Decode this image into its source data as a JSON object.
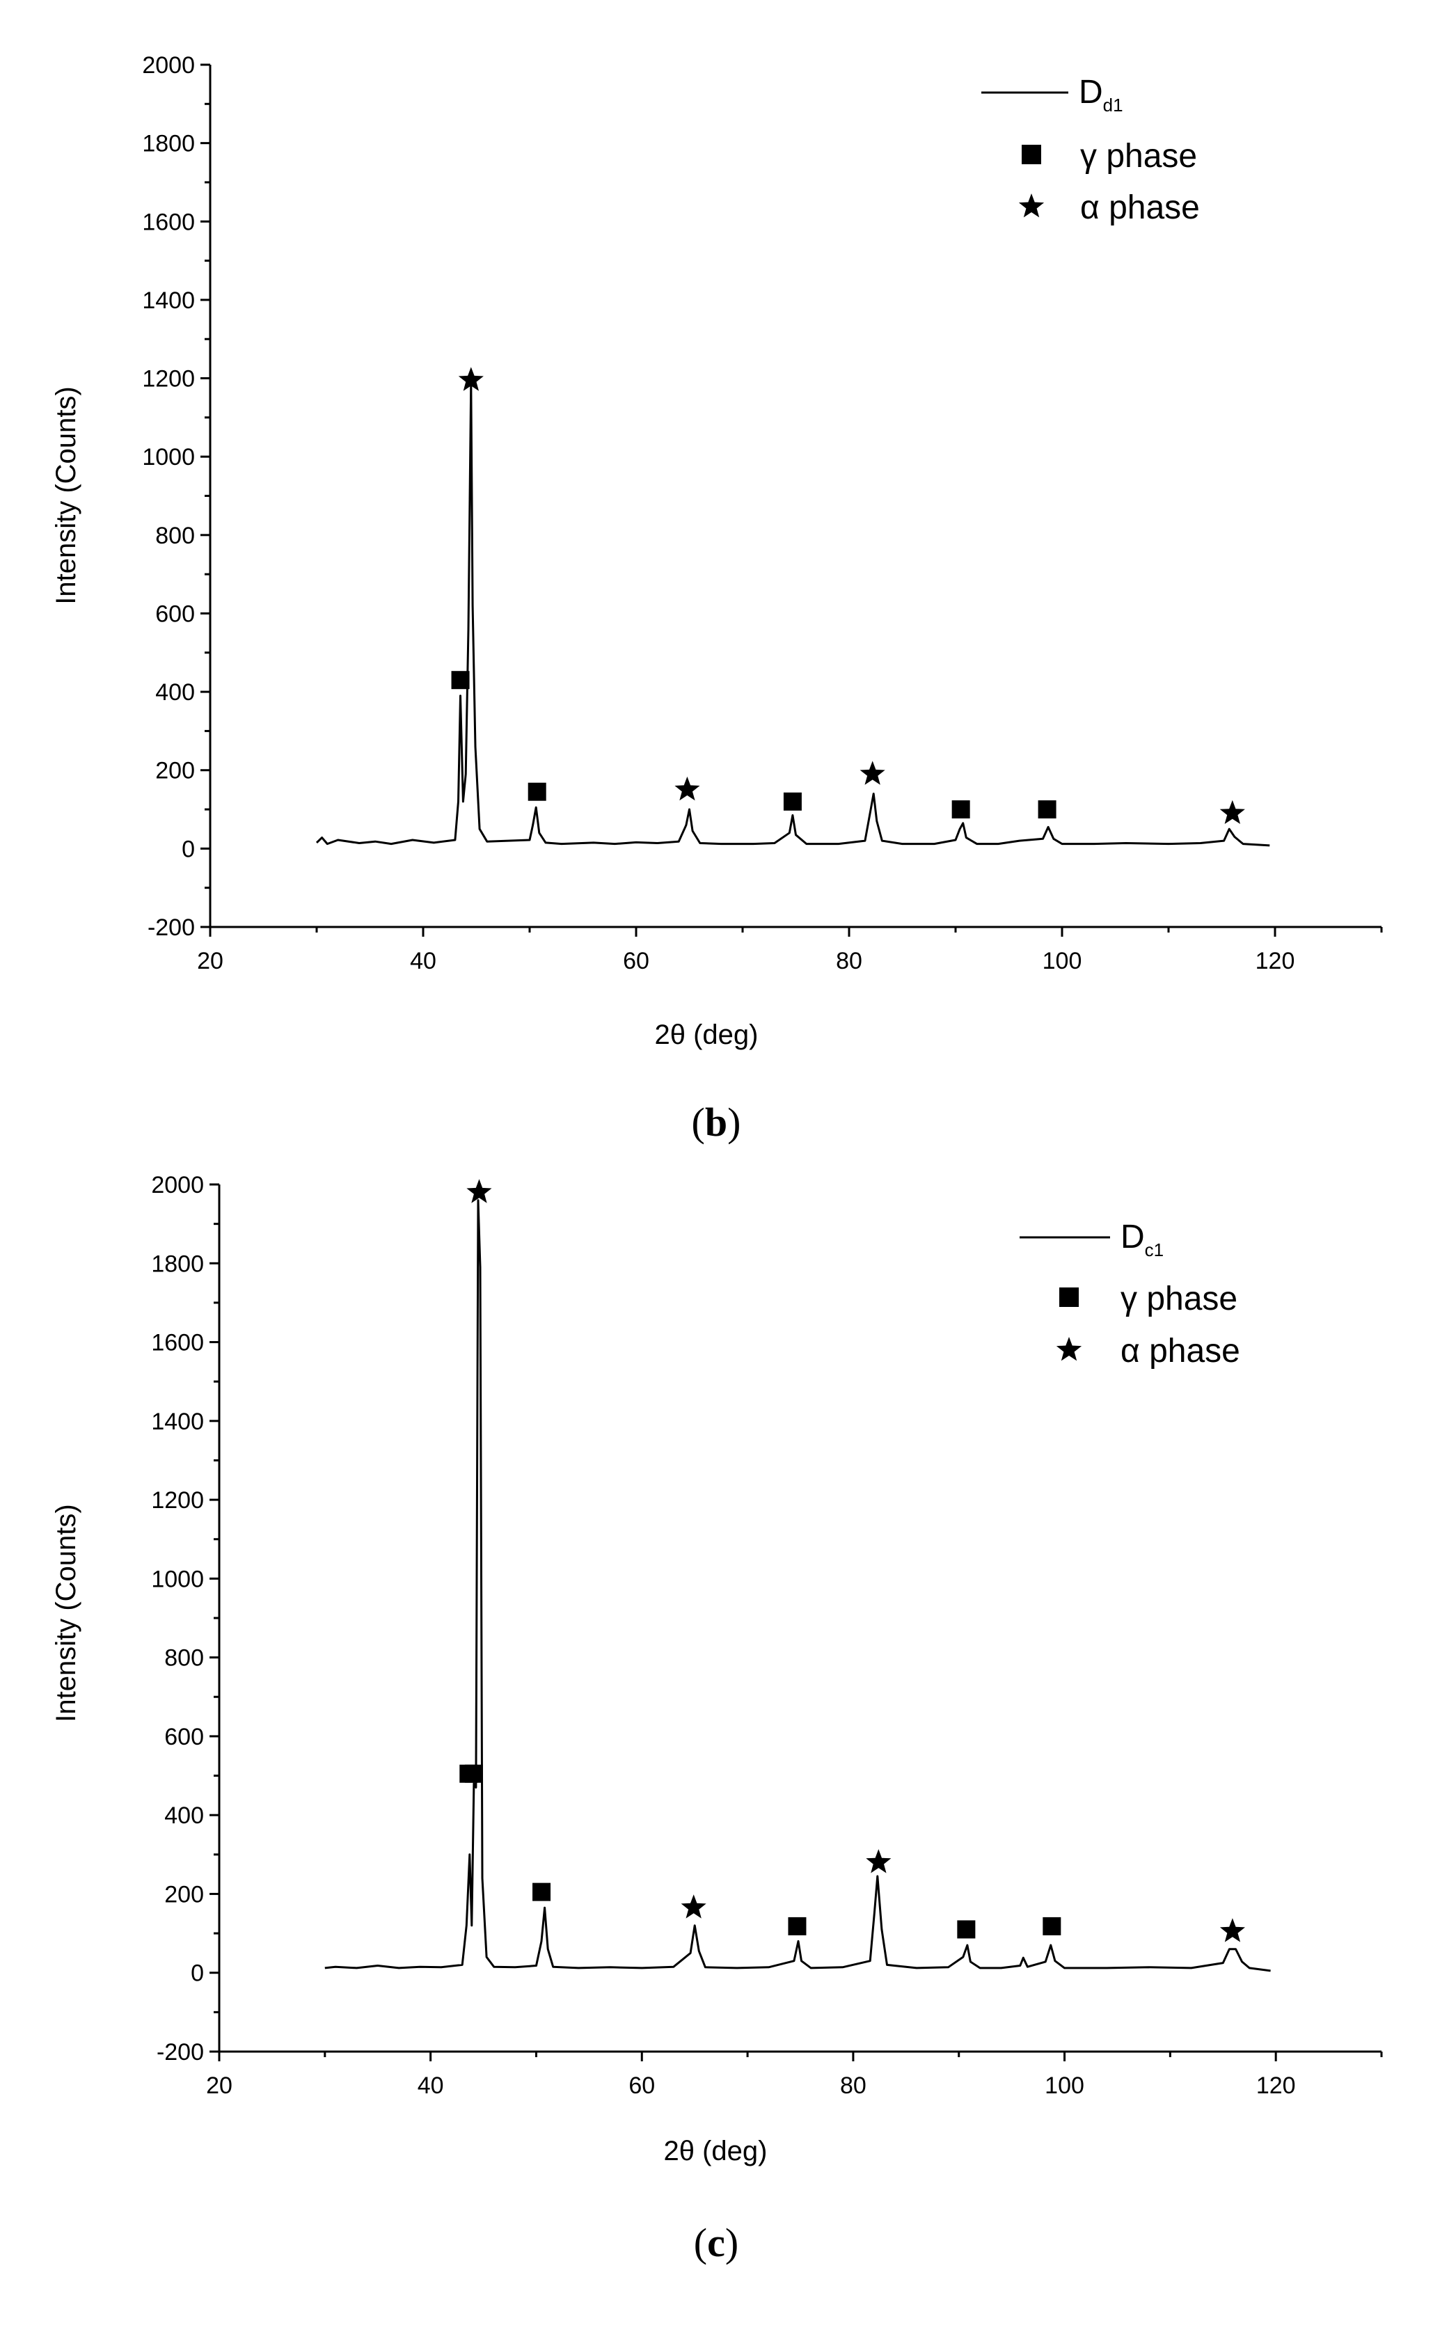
{
  "chart_data": [
    {
      "type": "line",
      "caption": "b",
      "xlabel": "2θ (deg)",
      "ylabel": "Intensity (Counts)",
      "xlim": [
        20,
        130
      ],
      "ylim": [
        -200,
        2000
      ],
      "xticks": [
        20,
        40,
        60,
        80,
        100,
        120
      ],
      "yticks": [
        -200,
        0,
        200,
        400,
        600,
        800,
        1000,
        1200,
        1400,
        1600,
        1800,
        2000
      ],
      "grid": false,
      "legend_position": "top-right",
      "series": [
        {
          "name": "Dd1",
          "name_main": "D",
          "name_sub": "d1",
          "points": [
            [
              30,
              15
            ],
            [
              30.5,
              28
            ],
            [
              31,
              12
            ],
            [
              32,
              22
            ],
            [
              34,
              14
            ],
            [
              35.5,
              18
            ],
            [
              37,
              12
            ],
            [
              39,
              22
            ],
            [
              41,
              15
            ],
            [
              43,
              22
            ],
            [
              43.3,
              120
            ],
            [
              43.5,
              390
            ],
            [
              43.75,
              120
            ],
            [
              44.0,
              190
            ],
            [
              44.25,
              560
            ],
            [
              44.5,
              1190
            ],
            [
              44.65,
              620
            ],
            [
              44.9,
              260
            ],
            [
              45.3,
              50
            ],
            [
              46,
              18
            ],
            [
              48,
              20
            ],
            [
              50,
              22
            ],
            [
              50.3,
              60
            ],
            [
              50.6,
              105
            ],
            [
              50.9,
              40
            ],
            [
              51.5,
              15
            ],
            [
              53,
              12
            ],
            [
              56,
              15
            ],
            [
              58,
              12
            ],
            [
              60,
              16
            ],
            [
              62,
              14
            ],
            [
              64,
              18
            ],
            [
              64.7,
              60
            ],
            [
              65.0,
              100
            ],
            [
              65.3,
              45
            ],
            [
              66,
              14
            ],
            [
              68,
              12
            ],
            [
              71,
              12
            ],
            [
              73,
              14
            ],
            [
              74.4,
              40
            ],
            [
              74.7,
              85
            ],
            [
              75.0,
              35
            ],
            [
              76,
              12
            ],
            [
              79,
              12
            ],
            [
              81.5,
              20
            ],
            [
              82.0,
              95
            ],
            [
              82.3,
              140
            ],
            [
              82.6,
              70
            ],
            [
              83.1,
              20
            ],
            [
              85,
              12
            ],
            [
              88,
              12
            ],
            [
              90.0,
              22
            ],
            [
              90.4,
              50
            ],
            [
              90.7,
              65
            ],
            [
              91.0,
              28
            ],
            [
              92,
              12
            ],
            [
              94,
              12
            ],
            [
              96,
              20
            ],
            [
              98.2,
              25
            ],
            [
              98.7,
              55
            ],
            [
              99.2,
              25
            ],
            [
              100,
              12
            ],
            [
              103,
              12
            ],
            [
              106,
              14
            ],
            [
              110,
              12
            ],
            [
              113,
              14
            ],
            [
              115.2,
              20
            ],
            [
              115.7,
              50
            ],
            [
              116.2,
              30
            ],
            [
              117,
              12
            ],
            [
              119.5,
              8
            ]
          ]
        }
      ],
      "markers": [
        {
          "name": "γ phase",
          "symbol": "square",
          "x": [
            43.5,
            50.7,
            74.7,
            90.5,
            98.6
          ],
          "y": [
            430,
            145,
            120,
            100,
            100
          ]
        },
        {
          "name": "α phase",
          "symbol": "star",
          "x": [
            44.5,
            64.8,
            82.2,
            116.0
          ],
          "y": [
            1195,
            150,
            190,
            90
          ]
        }
      ]
    },
    {
      "type": "line",
      "caption": "c",
      "xlabel": "2θ (deg)",
      "ylabel": "Intensity (Counts)",
      "xlim": [
        20,
        130
      ],
      "ylim": [
        -200,
        2000
      ],
      "xticks": [
        20,
        40,
        60,
        80,
        100,
        120
      ],
      "yticks": [
        -200,
        0,
        200,
        400,
        600,
        800,
        1000,
        1200,
        1400,
        1600,
        1800,
        2000
      ],
      "grid": false,
      "legend_position": "top-right",
      "series": [
        {
          "name": "Dc1",
          "name_main": "D",
          "name_sub": "c1",
          "points": [
            [
              30,
              12
            ],
            [
              31,
              15
            ],
            [
              33,
              12
            ],
            [
              35,
              18
            ],
            [
              37,
              12
            ],
            [
              39,
              15
            ],
            [
              41,
              14
            ],
            [
              43,
              20
            ],
            [
              43.4,
              120
            ],
            [
              43.7,
              300
            ],
            [
              43.9,
              120
            ],
            [
              44.1,
              480
            ],
            [
              44.3,
              470
            ],
            [
              44.5,
              1960
            ],
            [
              44.7,
              1790
            ],
            [
              44.9,
              240
            ],
            [
              45.3,
              40
            ],
            [
              46,
              15
            ],
            [
              48,
              14
            ],
            [
              50,
              18
            ],
            [
              50.5,
              80
            ],
            [
              50.8,
              165
            ],
            [
              51.1,
              60
            ],
            [
              51.6,
              15
            ],
            [
              54,
              12
            ],
            [
              57,
              14
            ],
            [
              60,
              12
            ],
            [
              63,
              15
            ],
            [
              64.6,
              50
            ],
            [
              65.0,
              120
            ],
            [
              65.4,
              55
            ],
            [
              66,
              14
            ],
            [
              69,
              12
            ],
            [
              72,
              14
            ],
            [
              74.4,
              30
            ],
            [
              74.8,
              80
            ],
            [
              75.1,
              30
            ],
            [
              76,
              12
            ],
            [
              79,
              14
            ],
            [
              81.6,
              30
            ],
            [
              82.0,
              150
            ],
            [
              82.3,
              245
            ],
            [
              82.7,
              110
            ],
            [
              83.2,
              20
            ],
            [
              86,
              12
            ],
            [
              89,
              14
            ],
            [
              90.4,
              40
            ],
            [
              90.8,
              70
            ],
            [
              91.1,
              28
            ],
            [
              92,
              12
            ],
            [
              94,
              12
            ],
            [
              95.8,
              18
            ],
            [
              96.1,
              38
            ],
            [
              96.5,
              15
            ],
            [
              98.2,
              28
            ],
            [
              98.7,
              70
            ],
            [
              99.1,
              30
            ],
            [
              100,
              12
            ],
            [
              104,
              12
            ],
            [
              108,
              14
            ],
            [
              112,
              12
            ],
            [
              115.0,
              25
            ],
            [
              115.6,
              60
            ],
            [
              116.2,
              60
            ],
            [
              116.8,
              28
            ],
            [
              117.5,
              12
            ],
            [
              119.5,
              5
            ]
          ]
        }
      ],
      "markers": [
        {
          "name": "γ phase",
          "symbol": "square",
          "x": [
            43.6,
            44.1,
            50.5,
            74.7,
            90.7,
            98.8
          ],
          "y": [
            505,
            505,
            205,
            118,
            110,
            118
          ]
        },
        {
          "name": "α phase",
          "symbol": "star",
          "x": [
            44.6,
            64.9,
            82.4,
            115.9
          ],
          "y": [
            1980,
            165,
            280,
            105
          ]
        }
      ]
    }
  ]
}
